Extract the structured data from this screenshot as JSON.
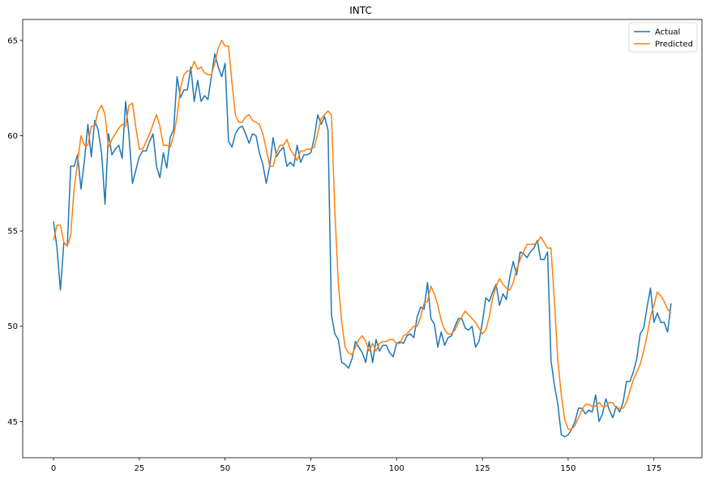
{
  "chart_data": {
    "type": "line",
    "title": "INTC",
    "xlabel": "",
    "ylabel": "",
    "xlim": [
      -9,
      189
    ],
    "ylim": [
      43.1,
      66.1
    ],
    "xticks": [
      0,
      25,
      50,
      75,
      100,
      125,
      150,
      175
    ],
    "yticks": [
      45,
      50,
      55,
      60,
      65
    ],
    "grid": false,
    "legend_position": "top-right",
    "series": [
      {
        "name": "Actual",
        "color": "#1f77b4",
        "values": [
          55.5,
          54.1,
          51.9,
          54.4,
          54.2,
          58.4,
          58.4,
          59.0,
          57.2,
          58.7,
          60.6,
          58.9,
          60.8,
          60.3,
          59.1,
          56.4,
          60.1,
          59.0,
          59.3,
          59.5,
          58.8,
          61.8,
          60.0,
          57.5,
          58.2,
          58.9,
          59.2,
          59.2,
          59.7,
          60.1,
          58.4,
          57.8,
          59.1,
          58.3,
          59.9,
          60.3,
          63.1,
          62.0,
          62.4,
          62.4,
          63.6,
          61.8,
          62.9,
          61.8,
          62.1,
          61.9,
          63.1,
          64.3,
          63.6,
          63.1,
          63.8,
          59.7,
          59.4,
          60.1,
          60.4,
          60.5,
          60.1,
          59.6,
          60.1,
          60.0,
          59.1,
          58.5,
          57.5,
          58.4,
          59.9,
          58.9,
          59.2,
          59.4,
          58.4,
          58.6,
          58.4,
          59.5,
          58.6,
          59.0,
          59.0,
          59.1,
          59.9,
          61.1,
          60.6,
          61.0,
          60.3,
          50.6,
          49.6,
          49.3,
          48.1,
          48.0,
          47.8,
          48.3,
          49.2,
          48.9,
          48.6,
          48.1,
          49.2,
          48.1,
          49.3,
          48.7,
          49.0,
          49.0,
          48.6,
          48.4,
          49.1,
          49.2,
          49.1,
          49.5,
          49.6,
          49.4,
          50.5,
          51.0,
          50.9,
          52.3,
          50.4,
          50.1,
          48.9,
          49.7,
          49.0,
          49.4,
          49.5,
          50.0,
          50.4,
          50.4,
          49.9,
          49.8,
          50.0,
          48.9,
          49.2,
          50.2,
          51.5,
          51.3,
          51.8,
          52.2,
          51.1,
          51.7,
          51.4,
          52.6,
          53.4,
          52.7,
          53.9,
          53.8,
          53.6,
          53.9,
          54.1,
          54.5,
          53.5,
          53.5,
          53.9,
          48.2,
          46.9,
          45.9,
          44.3,
          44.2,
          44.3,
          44.6,
          45.0,
          45.7,
          45.7,
          45.4,
          45.6,
          45.5,
          46.4,
          45.0,
          45.4,
          46.2,
          45.6,
          45.2,
          45.8,
          45.5,
          46.0,
          47.1,
          47.1,
          47.6,
          48.3,
          49.6,
          49.9,
          51.0,
          52.0,
          50.2,
          50.7,
          50.2,
          50.2,
          49.7,
          51.2
        ]
      },
      {
        "name": "Predicted",
        "color": "#ff7f0e",
        "values": [
          54.5,
          55.3,
          55.3,
          54.4,
          54.2,
          54.8,
          57.2,
          58.6,
          60.0,
          59.5,
          59.5,
          60.5,
          60.5,
          61.3,
          61.6,
          61.1,
          59.4,
          59.8,
          60.1,
          60.4,
          60.6,
          60.5,
          61.6,
          61.7,
          60.4,
          59.3,
          59.3,
          59.7,
          60.1,
          60.6,
          61.1,
          60.5,
          59.5,
          59.5,
          59.4,
          60.0,
          61.0,
          62.5,
          63.2,
          63.4,
          63.4,
          63.9,
          63.5,
          63.6,
          63.3,
          63.2,
          63.2,
          63.8,
          64.6,
          65.0,
          64.7,
          64.7,
          62.8,
          61.1,
          60.7,
          60.7,
          61.0,
          61.1,
          60.8,
          60.7,
          60.6,
          60.1,
          59.3,
          58.4,
          58.4,
          59.1,
          59.5,
          59.5,
          59.8,
          59.3,
          59.0,
          58.7,
          59.2,
          59.2,
          59.3,
          59.3,
          59.4,
          60.1,
          60.9,
          61.1,
          61.3,
          61.1,
          56.0,
          52.3,
          50.2,
          48.9,
          48.6,
          48.5,
          48.9,
          49.3,
          49.5,
          49.2,
          48.7,
          49.1,
          48.7,
          49.1,
          49.2,
          49.2,
          49.3,
          49.3,
          49.1,
          49.1,
          49.5,
          49.6,
          49.8,
          50.0,
          50.0,
          50.5,
          51.2,
          51.3,
          52.1,
          51.7,
          51.1,
          50.3,
          49.8,
          49.6,
          49.6,
          49.8,
          50.2,
          50.5,
          50.8,
          50.6,
          50.4,
          50.2,
          49.9,
          49.6,
          49.8,
          50.5,
          51.5,
          52.1,
          52.5,
          52.2,
          52.0,
          51.9,
          52.3,
          53.0,
          53.5,
          53.9,
          54.3,
          54.3,
          54.3,
          54.4,
          54.7,
          54.4,
          54.1,
          54.1,
          51.3,
          48.2,
          46.4,
          45.1,
          44.6,
          44.6,
          44.8,
          45.2,
          45.6,
          45.9,
          45.9,
          45.8,
          45.8,
          46.0,
          45.8,
          45.8,
          46.0,
          46.0,
          45.7,
          45.7,
          45.7,
          46.0,
          46.6,
          47.2,
          47.6,
          48.0,
          48.7,
          49.5,
          50.5,
          51.1,
          51.8,
          51.6,
          51.3,
          50.9,
          50.7
        ]
      }
    ]
  }
}
